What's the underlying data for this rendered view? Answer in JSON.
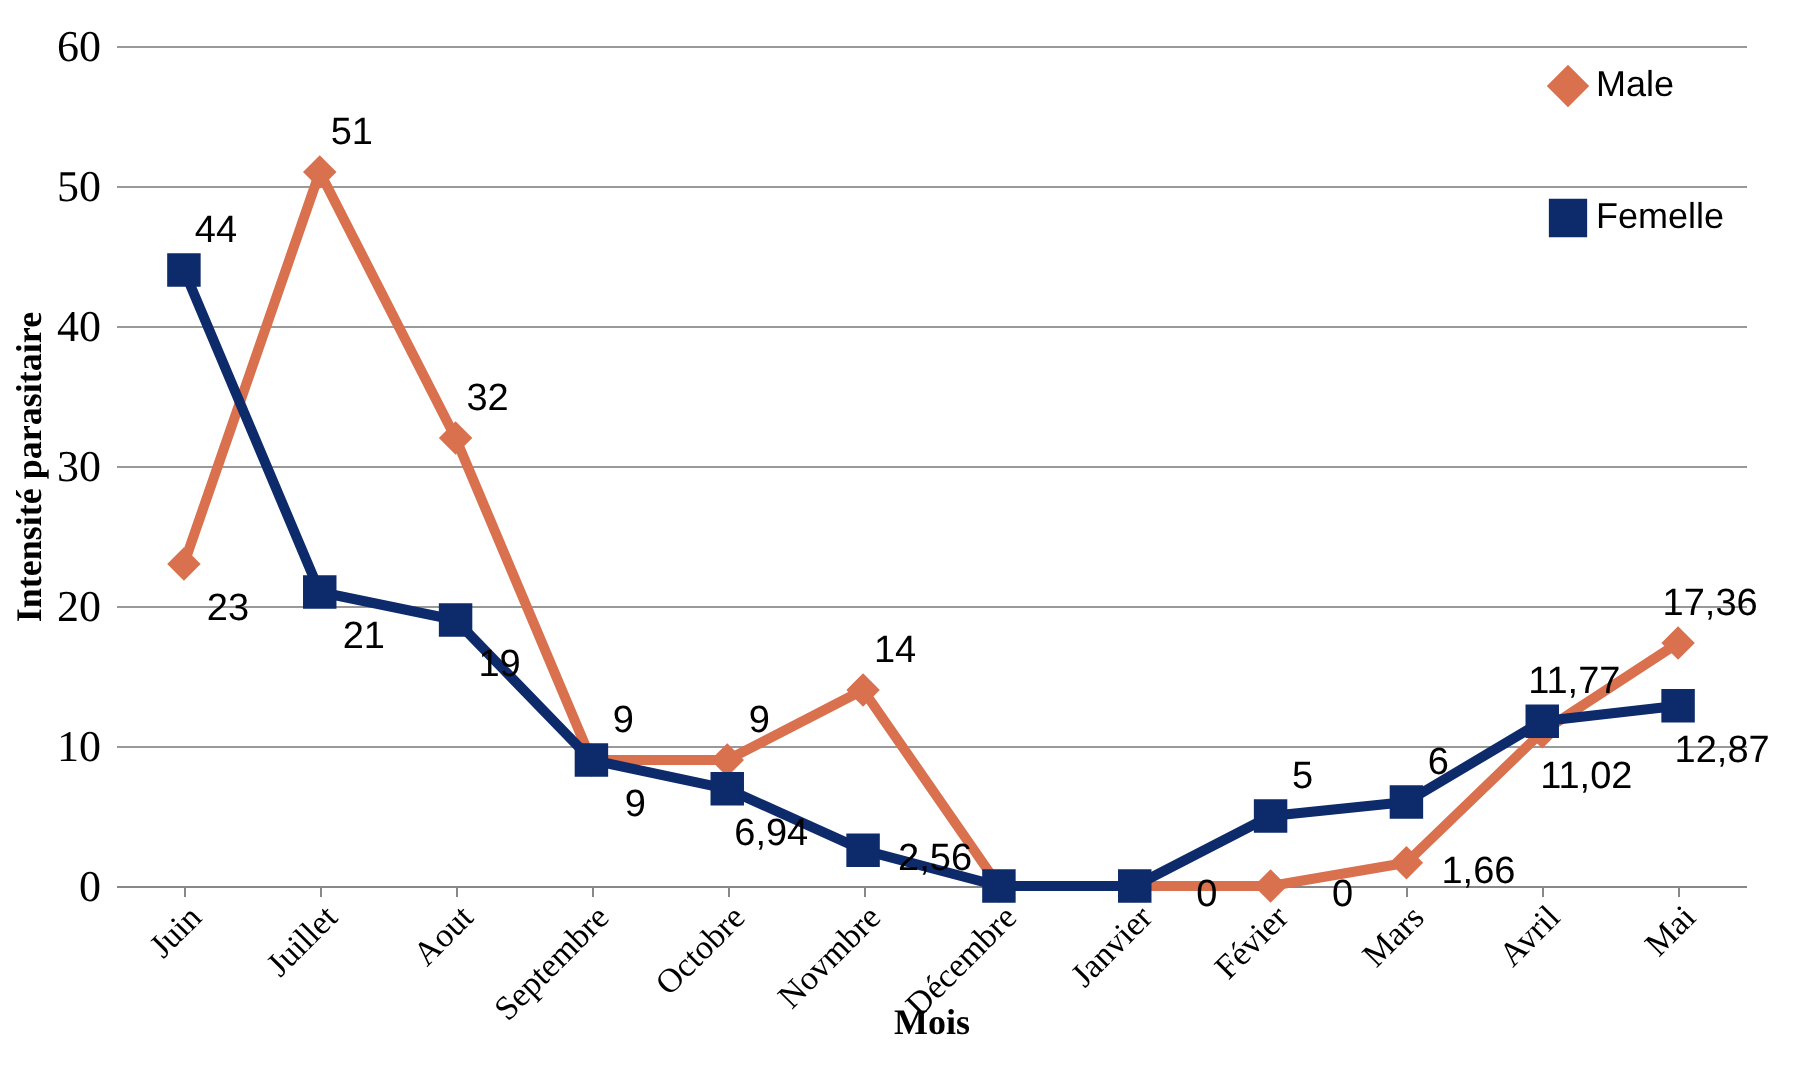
{
  "chart_data": {
    "type": "line",
    "xlabel": "Mois",
    "ylabel": "Intensité parasitaire",
    "categories": [
      "Juin",
      "Juillet",
      "Aout",
      "Septembre",
      "Octobre",
      "Novmbre",
      "Décembre",
      "Janvier",
      "Févier",
      "Mars",
      "Avril",
      "Mai"
    ],
    "series": [
      {
        "name": "Male",
        "color": "#d9704e",
        "marker": "diamond",
        "values": [
          23,
          51,
          32,
          9,
          9,
          14,
          0,
          0,
          0,
          1.66,
          11.02,
          17.36
        ],
        "value_labels": [
          "23",
          "51",
          "32",
          "9",
          "9",
          "14",
          null,
          null,
          "0",
          "1,66",
          "11,02",
          "17,36"
        ]
      },
      {
        "name": "Femelle",
        "color": "#0d2a6b",
        "marker": "square",
        "values": [
          44,
          21,
          19,
          9,
          6.94,
          2.56,
          0,
          0,
          5,
          6,
          11.77,
          12.87
        ],
        "value_labels": [
          "44",
          "21",
          "19",
          "9",
          "6,94",
          "2,56",
          null,
          "0",
          "5",
          "6",
          "11,77",
          "12,87"
        ]
      }
    ],
    "ylim": [
      0,
      60
    ],
    "yticks": [
      0,
      10,
      20,
      30,
      40,
      50,
      60
    ],
    "grid": "y",
    "legend": "top right"
  }
}
